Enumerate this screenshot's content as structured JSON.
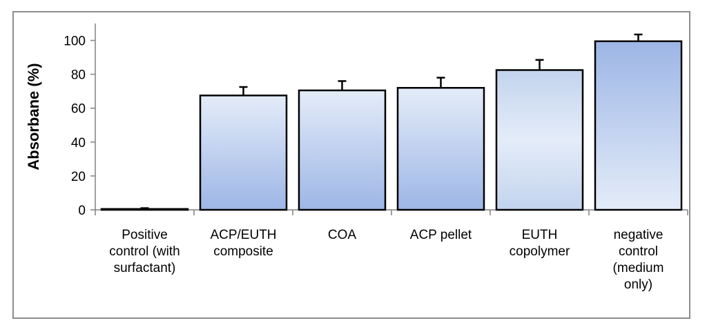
{
  "chart_data": {
    "type": "bar",
    "title": "",
    "xlabel": "",
    "ylabel": "Absorbane (%)",
    "ylim": [
      0,
      110
    ],
    "yticks": [
      0,
      20,
      40,
      60,
      80,
      100
    ],
    "grid": false,
    "legend": "none",
    "categories": [
      [
        "Positive",
        "control (with",
        "surfactant)"
      ],
      [
        "ACP/EUTH",
        "composite"
      ],
      [
        "COA"
      ],
      [
        "ACP pellet"
      ],
      [
        "EUTH",
        "copolymer"
      ],
      [
        "negative",
        "control",
        "(medium",
        "only)"
      ]
    ],
    "values": [
      0.5,
      67.5,
      70.5,
      72,
      82.5,
      99.5
    ],
    "errors": [
      0.5,
      5,
      5.5,
      6,
      6,
      4
    ],
    "colors": {
      "bar_light": "#e4ecf8",
      "bar_mid": "#c3d3ee",
      "bar_dark": "#9db6e6",
      "bar_edge": "#000000",
      "axis": "#808080"
    }
  }
}
